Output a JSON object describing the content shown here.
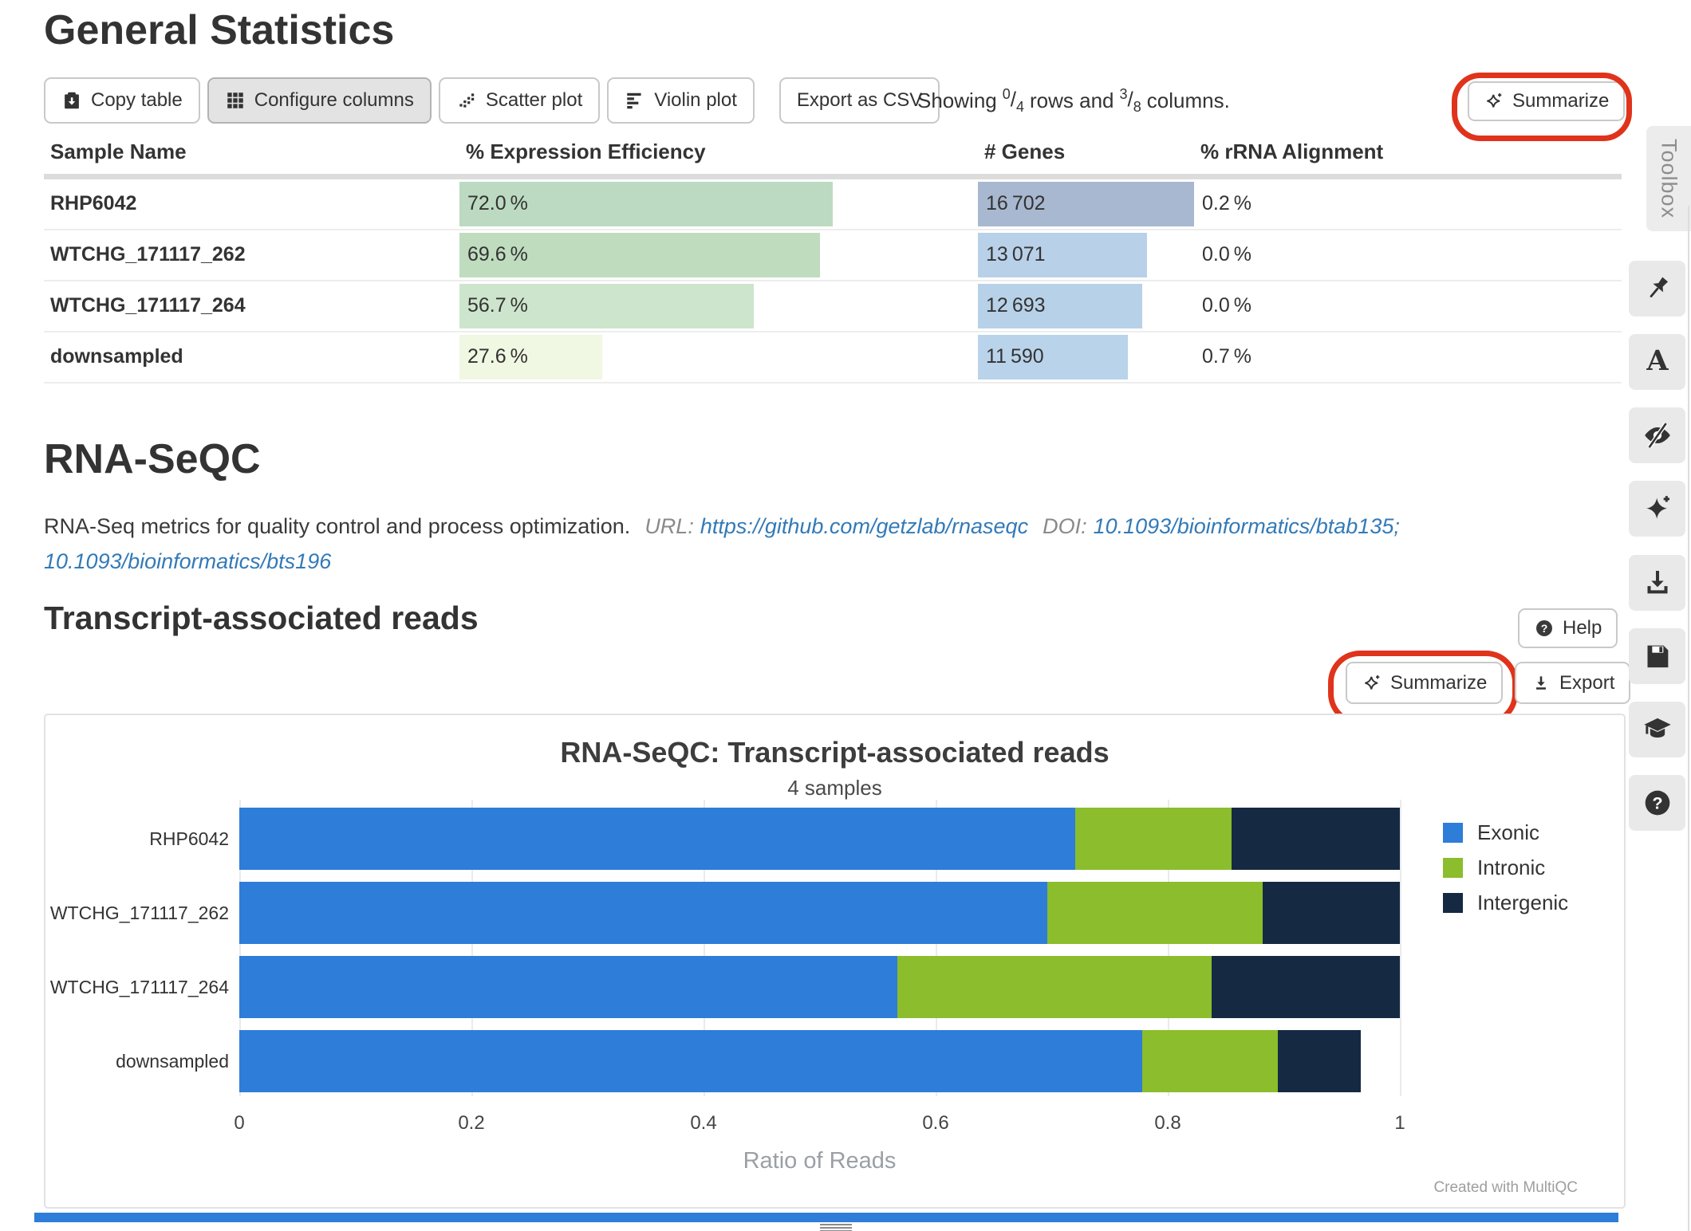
{
  "general_stats": {
    "title": "General Statistics",
    "toolbar": {
      "buttons": [
        {
          "id": "copy-table",
          "label": "Copy table",
          "icon": "clipboard",
          "active": false
        },
        {
          "id": "configure-columns",
          "label": "Configure columns",
          "icon": "grid",
          "active": true
        },
        {
          "id": "scatter-plot",
          "label": "Scatter plot",
          "icon": "scatter",
          "active": false
        },
        {
          "id": "violin-plot",
          "label": "Violin plot",
          "icon": "align-left",
          "active": false
        },
        {
          "id": "export-csv",
          "label": "Export as CSV",
          "icon": null,
          "active": false,
          "gap": true
        }
      ],
      "showing": {
        "prefix": "Showing",
        "rows_num": "0",
        "rows_den": "4",
        "sep": "/",
        "rows_word": "rows and",
        "cols_num": "3",
        "cols_den": "8",
        "suffix": "columns."
      },
      "summarize_label": "Summarize"
    },
    "table": {
      "columns": [
        "Sample Name",
        "% Expression Efficiency",
        "# Genes",
        "% rRNA Alignment"
      ],
      "rows": [
        {
          "sample": "RHP6042",
          "expression": {
            "text": "72.0 %",
            "fill": 0.72,
            "color": "#bcdac1"
          },
          "genes": {
            "text": "16 702",
            "fill": 1.0,
            "color": "#a8b8d0"
          },
          "rrna": "0.2 %"
        },
        {
          "sample": "WTCHG_171117_262",
          "expression": {
            "text": "69.6 %",
            "fill": 0.696,
            "color": "#bfdcbf"
          },
          "genes": {
            "text": "13 071",
            "fill": 0.783,
            "color": "#b8d1e9"
          },
          "rrna": "0.0 %"
        },
        {
          "sample": "WTCHG_171117_264",
          "expression": {
            "text": "56.7 %",
            "fill": 0.567,
            "color": "#cde5cc"
          },
          "genes": {
            "text": "12 693",
            "fill": 0.76,
            "color": "#b7d1e8"
          },
          "rrna": "0.0 %"
        },
        {
          "sample": "downsampled",
          "expression": {
            "text": "27.6 %",
            "fill": 0.276,
            "color": "#f0f7e2"
          },
          "genes": {
            "text": "11 590",
            "fill": 0.694,
            "color": "#b9d3ea"
          },
          "rrna": "0.7 %"
        }
      ]
    }
  },
  "module": {
    "title": "RNA-SeQC",
    "description": "RNA-Seq metrics for quality control and process optimization.",
    "url_label": "URL:",
    "url": "https://github.com/getzlab/rnaseqc",
    "doi_label": "DOI:",
    "doi1": "10.1093/bioinformatics/btab135;",
    "doi2": "10.1093/bioinformatics/bts196"
  },
  "section": {
    "title": "Transcript-associated reads",
    "help_label": "Help",
    "summarize_label": "Summarize",
    "export_label": "Export"
  },
  "chart_data": {
    "type": "bar",
    "orientation": "horizontal",
    "stacked": true,
    "title": "RNA-SeQC: Transcript-associated reads",
    "subtitle": "4 samples",
    "categories": [
      "RHP6042",
      "WTCHG_171117_262",
      "WTCHG_171117_264",
      "downsampled"
    ],
    "series": [
      {
        "name": "Exonic",
        "color": "#2d7dd9",
        "values": [
          0.72,
          0.696,
          0.567,
          0.778
        ]
      },
      {
        "name": "Intronic",
        "color": "#8bbd2c",
        "values": [
          0.135,
          0.186,
          0.271,
          0.117
        ]
      },
      {
        "name": "Intergenic",
        "color": "#152a42",
        "values": [
          0.145,
          0.118,
          0.162,
          0.071
        ]
      }
    ],
    "xlabel": "Ratio of Reads",
    "xlim": [
      0,
      1
    ],
    "xticks": [
      "0",
      "0.2",
      "0.4",
      "0.6",
      "0.8",
      "1"
    ],
    "grid": true,
    "legend_position": "right",
    "watermark": "Created with MultiQC"
  },
  "toolbox": {
    "label": "Toolbox",
    "buttons": [
      {
        "id": "pin",
        "icon": "pin"
      },
      {
        "id": "rename",
        "icon": "font"
      },
      {
        "id": "show-hide",
        "icon": "eye-slash"
      },
      {
        "id": "ai",
        "icon": "sparkle"
      },
      {
        "id": "download",
        "icon": "download"
      },
      {
        "id": "save",
        "icon": "save"
      },
      {
        "id": "tour",
        "icon": "graduation-cap"
      },
      {
        "id": "help",
        "icon": "question"
      }
    ]
  }
}
